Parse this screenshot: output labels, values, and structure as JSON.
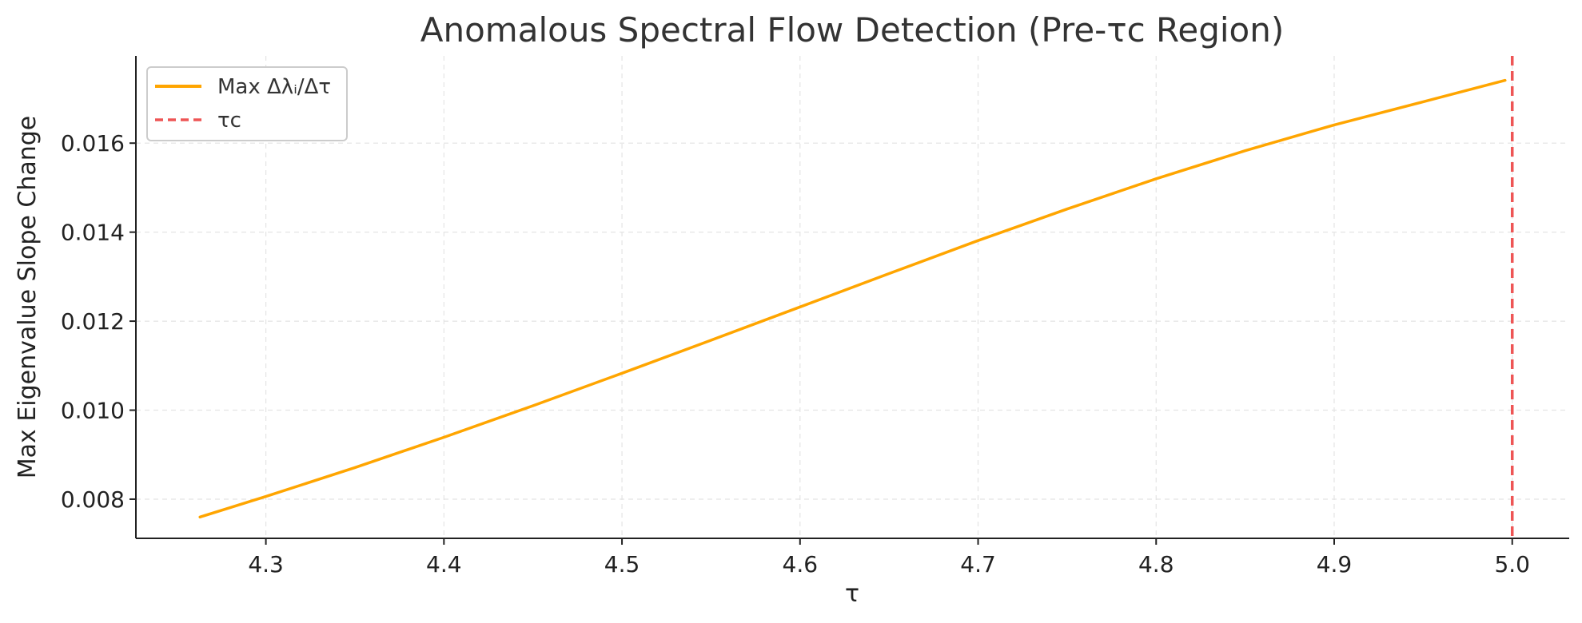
{
  "chart_data": {
    "type": "line",
    "title": "Anomalous Spectral Flow Detection (Pre-τc Region)",
    "xlabel": "τ",
    "ylabel": "Max Eigenvalue Slope Change",
    "xlim": [
      4.227,
      5.032
    ],
    "ylim": [
      0.00712,
      0.01796
    ],
    "x_ticks": [
      {
        "value": 4.3,
        "label": "4.3"
      },
      {
        "value": 4.4,
        "label": "4.4"
      },
      {
        "value": 4.5,
        "label": "4.5"
      },
      {
        "value": 4.6,
        "label": "4.6"
      },
      {
        "value": 4.7,
        "label": "4.7"
      },
      {
        "value": 4.8,
        "label": "4.8"
      },
      {
        "value": 4.9,
        "label": "4.9"
      },
      {
        "value": 5.0,
        "label": "5.0"
      }
    ],
    "y_ticks": [
      {
        "value": 0.008,
        "label": "0.008"
      },
      {
        "value": 0.01,
        "label": "0.010"
      },
      {
        "value": 0.012,
        "label": "0.012"
      },
      {
        "value": 0.014,
        "label": "0.014"
      },
      {
        "value": 0.016,
        "label": "0.016"
      }
    ],
    "grid": true,
    "legend_position": "top-left",
    "series": [
      {
        "name": "Max Δλᵢ/Δτ",
        "color": "#FFA500",
        "style": "solid",
        "x": [
          4.263,
          4.3,
          4.35,
          4.4,
          4.45,
          4.5,
          4.55,
          4.6,
          4.65,
          4.7,
          4.75,
          4.8,
          4.85,
          4.9,
          4.95,
          4.996
        ],
        "y": [
          0.0076,
          0.00806,
          0.00871,
          0.00939,
          0.0101,
          0.01083,
          0.01157,
          0.01232,
          0.01307,
          0.01381,
          0.01452,
          0.0152,
          0.01583,
          0.01641,
          0.01693,
          0.01741
        ]
      }
    ],
    "vlines": [
      {
        "name": "τc",
        "x": 5.0,
        "color": "#EE5555",
        "style": "dashed"
      }
    ]
  }
}
